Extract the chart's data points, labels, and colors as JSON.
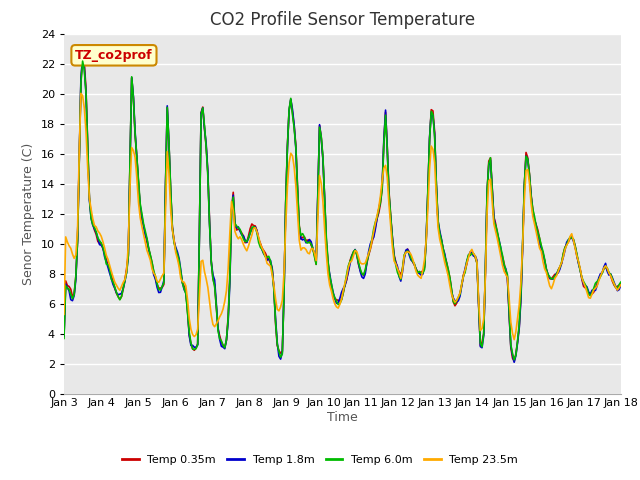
{
  "title": "CO2 Profile Sensor Temperature",
  "ylabel": "Senor Temperature (C)",
  "xlabel": "Time",
  "annotation_text": "TZ_co2prof",
  "annotation_color": "#cc0000",
  "annotation_bg": "#ffffcc",
  "annotation_border": "#cc8800",
  "ylim": [
    0,
    24
  ],
  "yticks": [
    0,
    2,
    4,
    6,
    8,
    10,
    12,
    14,
    16,
    18,
    20,
    22,
    24
  ],
  "xtick_labels": [
    "Jan 3",
    "Jan 4",
    "Jan 5",
    "Jan 6",
    "Jan 7",
    "Jan 8",
    "Jan 9",
    "Jan 10",
    "Jan 11",
    "Jan 12",
    "Jan 13",
    "Jan 14",
    "Jan 15",
    "Jan 16",
    "Jan 17",
    "Jan 18"
  ],
  "line_colors": [
    "#cc0000",
    "#0000cc",
    "#00bb00",
    "#ffaa00"
  ],
  "line_labels": [
    "Temp 0.35m",
    "Temp 1.8m",
    "Temp 6.0m",
    "Temp 23.5m"
  ],
  "line_width": 1.2,
  "fig_bg_color": "#ffffff",
  "plot_bg_color": "#e8e8e8",
  "grid_color": "#ffffff",
  "title_fontsize": 12,
  "label_fontsize": 9,
  "tick_fontsize": 8,
  "base_pattern": [
    7.5,
    7.2,
    7.0,
    6.8,
    6.5,
    6.3,
    7.0,
    8.5,
    12.0,
    19.0,
    22.5,
    22.2,
    21.5,
    19.0,
    14.0,
    12.0,
    11.5,
    11.0,
    10.8,
    10.5,
    10.3,
    10.0,
    9.8,
    9.5,
    9.0,
    8.8,
    8.5,
    8.0,
    7.5,
    7.0,
    6.8,
    6.5,
    6.5,
    6.5,
    6.8,
    7.2,
    7.8,
    8.5,
    10.0,
    21.0,
    21.3,
    18.5,
    16.5,
    15.0,
    13.0,
    12.0,
    11.5,
    11.0,
    10.5,
    10.0,
    9.5,
    9.0,
    8.5,
    8.0,
    7.5,
    7.0,
    7.0,
    7.0,
    7.2,
    7.5,
    20.3,
    18.0,
    15.5,
    12.0,
    10.5,
    10.0,
    9.5,
    9.0,
    8.5,
    7.5,
    7.2,
    7.0,
    6.5,
    4.5,
    3.5,
    3.2,
    3.0,
    3.0,
    3.2,
    3.5,
    18.0,
    19.5,
    18.5,
    17.0,
    16.0,
    13.0,
    9.5,
    8.0,
    7.5,
    7.0,
    4.5,
    4.0,
    3.5,
    3.2,
    3.0,
    3.0,
    4.0,
    6.0,
    9.5,
    15.0,
    11.5,
    11.2,
    11.0,
    11.0,
    10.8,
    10.5,
    10.3,
    10.0,
    10.0,
    10.5,
    11.0,
    11.2,
    11.2,
    11.0,
    10.5,
    10.0,
    9.8,
    9.5,
    9.5,
    9.0,
    9.0,
    9.0,
    8.5,
    8.0,
    6.0,
    3.5,
    3.0,
    2.5,
    2.5,
    3.0,
    10.5,
    15.0,
    18.0,
    19.8,
    19.5,
    18.0,
    17.5,
    15.5,
    12.0,
    10.5,
    10.5,
    10.5,
    10.3,
    10.0,
    10.0,
    10.0,
    9.8,
    9.5,
    9.0,
    8.5,
    18.0,
    17.5,
    16.5,
    15.0,
    11.0,
    9.5,
    8.0,
    7.5,
    7.0,
    6.5,
    6.3,
    6.0,
    6.0,
    6.2,
    6.5,
    7.0,
    7.5,
    8.0,
    8.5,
    9.0,
    9.2,
    9.5,
    9.5,
    9.0,
    8.5,
    8.0,
    8.0,
    8.0,
    8.5,
    9.0,
    9.5,
    10.0,
    10.5,
    11.0,
    11.5,
    12.0,
    12.5,
    13.0,
    14.5,
    19.0,
    18.5,
    14.5,
    12.5,
    11.5,
    9.5,
    9.0,
    8.5,
    8.0,
    7.8,
    7.5,
    9.0,
    9.3,
    9.5,
    9.5,
    9.2,
    9.0,
    8.8,
    8.5,
    8.2,
    8.0,
    8.0,
    8.0,
    8.2,
    8.5,
    12.0,
    15.0,
    19.0,
    18.8,
    18.5,
    16.0,
    12.0,
    11.0,
    10.5,
    10.0,
    9.5,
    9.0,
    8.5,
    8.0,
    7.5,
    6.5,
    6.0,
    6.0,
    6.2,
    6.5,
    7.0,
    7.5,
    8.0,
    8.5,
    9.0,
    9.2,
    9.5,
    9.5,
    9.2,
    9.0,
    8.5,
    3.5,
    3.0,
    3.5,
    4.5,
    12.0,
    15.0,
    16.0,
    15.5,
    12.0,
    11.5,
    11.0,
    10.5,
    10.0,
    9.5,
    9.0,
    8.5,
    8.0,
    7.5,
    3.5,
    3.0,
    2.0,
    2.2,
    3.0,
    4.0,
    5.0,
    8.0,
    12.0,
    15.8,
    16.0,
    15.5,
    14.0,
    12.5,
    12.0,
    11.5,
    11.0,
    10.5,
    10.0,
    9.5,
    9.0,
    8.5,
    8.0,
    7.8,
    7.5,
    7.5,
    7.8,
    8.0,
    8.0,
    8.2,
    8.5,
    9.0,
    9.5,
    9.8,
    10.0,
    10.2,
    10.5,
    10.5,
    10.0,
    9.5,
    9.0,
    8.5,
    8.0,
    7.5,
    7.2,
    7.0,
    6.8,
    6.5,
    6.5,
    6.8,
    7.0,
    7.2,
    7.5,
    7.8,
    8.0,
    8.2,
    8.5,
    8.5,
    8.2,
    8.0,
    7.8,
    7.5,
    7.2,
    7.0,
    7.0,
    7.2,
    7.5
  ],
  "orange_offset_pattern": [
    10.5,
    10.3,
    10.0,
    9.8,
    9.5,
    9.0,
    9.0,
    9.5,
    12.5,
    20.0,
    20.0,
    19.5,
    18.5,
    16.5,
    13.5,
    12.5,
    12.0,
    11.5,
    11.2,
    11.0,
    10.8,
    10.5,
    10.2,
    9.8,
    9.5,
    9.2,
    8.8,
    8.5,
    8.0,
    7.5,
    7.2,
    7.0,
    7.0,
    7.0,
    7.2,
    7.5,
    8.0,
    8.8,
    11.0,
    16.5,
    16.5,
    16.0,
    15.5,
    13.5,
    12.0,
    11.2,
    10.8,
    10.2,
    9.8,
    9.5,
    9.0,
    8.5,
    8.0,
    7.8,
    7.5,
    7.2,
    7.5,
    7.8,
    8.0,
    8.2,
    16.5,
    16.0,
    13.5,
    11.0,
    10.2,
    9.8,
    9.2,
    8.8,
    8.0,
    7.5,
    7.5,
    7.5,
    7.0,
    5.5,
    4.5,
    4.0,
    3.8,
    3.8,
    4.0,
    4.5,
    8.5,
    9.5,
    8.5,
    8.0,
    7.5,
    6.5,
    5.5,
    5.0,
    4.5,
    4.5,
    4.8,
    5.0,
    5.2,
    5.5,
    6.0,
    6.5,
    7.5,
    9.5,
    12.0,
    13.5,
    11.0,
    10.8,
    10.5,
    10.5,
    10.2,
    10.0,
    9.8,
    9.5,
    9.5,
    10.0,
    10.5,
    10.8,
    11.0,
    11.0,
    10.8,
    10.2,
    9.8,
    9.5,
    9.2,
    8.8,
    8.5,
    8.5,
    8.2,
    7.8,
    6.5,
    5.5,
    5.5,
    5.5,
    5.8,
    6.5,
    9.5,
    12.5,
    15.0,
    16.0,
    16.0,
    15.5,
    14.5,
    13.0,
    11.0,
    9.8,
    9.8,
    9.8,
    9.5,
    9.5,
    9.2,
    9.5,
    9.8,
    9.5,
    9.0,
    8.5,
    15.0,
    14.5,
    13.5,
    12.0,
    10.0,
    8.5,
    7.5,
    7.0,
    6.5,
    6.0,
    6.0,
    5.8,
    5.8,
    6.0,
    6.5,
    7.0,
    7.5,
    8.0,
    8.5,
    9.0,
    9.0,
    9.2,
    9.5,
    9.2,
    8.8,
    8.5,
    8.5,
    8.5,
    8.8,
    9.2,
    9.5,
    10.0,
    10.5,
    11.0,
    11.5,
    12.0,
    12.8,
    13.5,
    15.0,
    15.0,
    15.0,
    13.5,
    11.8,
    10.8,
    9.2,
    8.8,
    8.5,
    8.0,
    7.8,
    7.5,
    9.0,
    9.2,
    9.5,
    9.5,
    9.2,
    9.0,
    8.8,
    8.5,
    8.2,
    7.8,
    7.8,
    8.0,
    8.5,
    9.0,
    11.5,
    13.5,
    16.5,
    16.5,
    16.0,
    14.5,
    11.5,
    10.5,
    10.0,
    9.5,
    9.0,
    8.5,
    8.0,
    7.5,
    7.0,
    6.5,
    6.2,
    6.0,
    6.2,
    6.5,
    7.0,
    7.5,
    8.0,
    8.5,
    9.0,
    9.2,
    9.5,
    9.5,
    9.2,
    9.0,
    8.5,
    4.5,
    4.0,
    4.5,
    5.5,
    10.5,
    13.5,
    14.5,
    14.0,
    11.5,
    11.0,
    10.5,
    10.0,
    9.5,
    9.0,
    8.5,
    8.2,
    7.8,
    7.5,
    5.0,
    4.5,
    3.8,
    4.0,
    4.5,
    5.5,
    6.5,
    8.5,
    11.5,
    14.5,
    15.0,
    14.5,
    13.5,
    12.0,
    11.5,
    11.0,
    10.5,
    10.0,
    9.5,
    9.0,
    8.5,
    8.2,
    7.8,
    7.5,
    7.2,
    7.2,
    7.5,
    7.8,
    8.0,
    8.2,
    8.5,
    9.0,
    9.5,
    9.8,
    10.0,
    10.2,
    10.5,
    10.5,
    10.0,
    9.5,
    9.0,
    8.5,
    8.0,
    7.5,
    7.2,
    7.0,
    6.8,
    6.5,
    6.5,
    6.8,
    7.0,
    7.2,
    7.5,
    7.8,
    8.0,
    8.2,
    8.5,
    8.5,
    8.2,
    8.0,
    7.8,
    7.5,
    7.2,
    7.0,
    7.0,
    7.2,
    7.5
  ]
}
